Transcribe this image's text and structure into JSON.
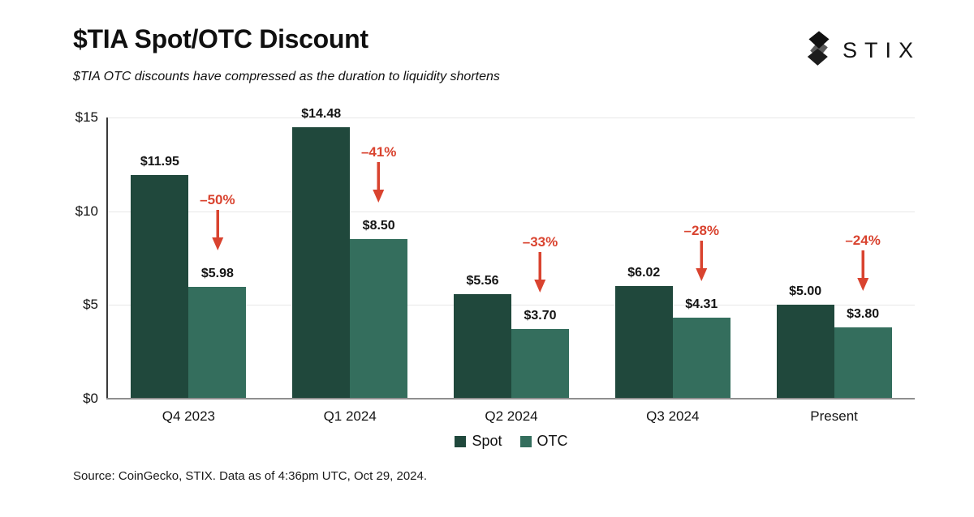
{
  "header": {
    "title": "$TIA Spot/OTC Discount",
    "subtitle": "$TIA OTC discounts have compressed as the duration to liquidity shortens",
    "logo_text": "STIX"
  },
  "chart_data": {
    "type": "bar",
    "title": "$TIA Spot/OTC Discount",
    "subtitle": "$TIA OTC discounts have compressed as the duration to liquidity shortens",
    "categories": [
      "Q4 2023",
      "Q1 2024",
      "Q2 2024",
      "Q3 2024",
      "Present"
    ],
    "series": [
      {
        "name": "Spot",
        "color": "#20483c",
        "values": [
          11.95,
          14.48,
          5.56,
          6.02,
          5.0
        ],
        "value_labels": [
          "$11.95",
          "$14.48",
          "$5.56",
          "$6.02",
          "$5.00"
        ]
      },
      {
        "name": "OTC",
        "color": "#346e5d",
        "values": [
          5.98,
          8.5,
          3.7,
          4.31,
          3.8
        ],
        "value_labels": [
          "$5.98",
          "$8.50",
          "$3.70",
          "$4.31",
          "$3.80"
        ]
      }
    ],
    "discount_annotations": {
      "color": "#d9432f",
      "labels": [
        "–50%",
        "–41%",
        "–33%",
        "–28%",
        "–24%"
      ]
    },
    "xlabel": "",
    "ylabel": "",
    "ylim": [
      0,
      15
    ],
    "yticks": [
      {
        "value": 0,
        "label": "$0"
      },
      {
        "value": 5,
        "label": "$5"
      },
      {
        "value": 10,
        "label": "$10"
      },
      {
        "value": 15,
        "label": "$15"
      }
    ],
    "grid": true,
    "legend_position": "bottom-center"
  },
  "legend": {
    "items": [
      {
        "label": "Spot",
        "color": "#20483c"
      },
      {
        "label": "OTC",
        "color": "#346e5d"
      }
    ]
  },
  "footer": {
    "source": "Source: CoinGecko, STIX. Data as of 4:36pm UTC, Oct 29, 2024."
  }
}
